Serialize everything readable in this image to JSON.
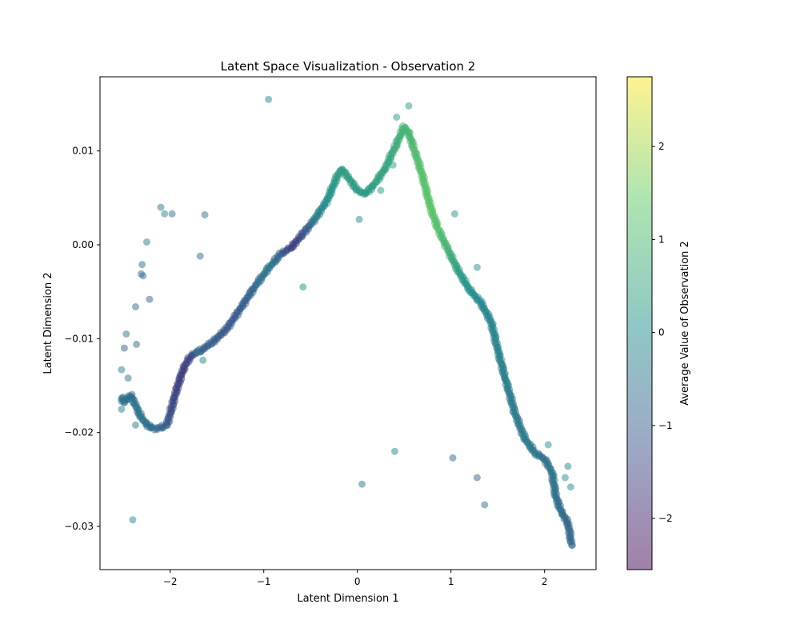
{
  "chart_data": {
    "type": "scatter",
    "title": "Latent Space Visualization - Observation 2",
    "xlabel": "Latent Dimension 1",
    "ylabel": "Latent Dimension 2",
    "xlim": [
      -2.75,
      2.55
    ],
    "ylim": [
      -0.0346,
      0.0179
    ],
    "xticks": [
      -2,
      -1,
      0,
      1,
      2
    ],
    "xtick_labels": [
      "−2",
      "−1",
      "0",
      "1",
      "2"
    ],
    "yticks": [
      0.01,
      0.0,
      -0.01,
      -0.02,
      -0.03
    ],
    "ytick_labels": [
      "0.01",
      "0.00",
      "−0.01",
      "−0.02",
      "−0.03"
    ],
    "grid": false,
    "marker_alpha": 0.5,
    "colormap": "viridis",
    "colorbar": {
      "label": "Average Value of Observation 2",
      "range": [
        -2.55,
        2.75
      ],
      "ticks": [
        2,
        1,
        0,
        -1,
        -2
      ],
      "tick_labels": [
        "2",
        "1",
        "0",
        "−1",
        "−2"
      ],
      "stops": [
        "#440154",
        "#3b528b",
        "#21918c",
        "#5ec962",
        "#fde725"
      ]
    },
    "curve": [
      {
        "x": -2.52,
        "y": -0.0162,
        "v": -0.6
      },
      {
        "x": -2.5,
        "y": -0.0168,
        "v": -0.5
      },
      {
        "x": -2.46,
        "y": -0.0165,
        "v": -0.6
      },
      {
        "x": -2.42,
        "y": -0.016,
        "v": -0.7
      },
      {
        "x": -2.38,
        "y": -0.0168,
        "v": -0.5
      },
      {
        "x": -2.33,
        "y": -0.018,
        "v": -0.5
      },
      {
        "x": -2.26,
        "y": -0.0191,
        "v": -0.6
      },
      {
        "x": -2.18,
        "y": -0.0196,
        "v": -0.7
      },
      {
        "x": -2.1,
        "y": -0.0195,
        "v": -0.8
      },
      {
        "x": -2.03,
        "y": -0.0191,
        "v": -1.0
      },
      {
        "x": -1.98,
        "y": -0.0172,
        "v": -1.4
      },
      {
        "x": -1.92,
        "y": -0.015,
        "v": -1.5
      },
      {
        "x": -1.85,
        "y": -0.013,
        "v": -1.6
      },
      {
        "x": -1.78,
        "y": -0.0118,
        "v": -1.4
      },
      {
        "x": -1.68,
        "y": -0.0113,
        "v": -1.0
      },
      {
        "x": -1.55,
        "y": -0.0104,
        "v": -0.9
      },
      {
        "x": -1.4,
        "y": -0.009,
        "v": -1.1
      },
      {
        "x": -1.25,
        "y": -0.0068,
        "v": -1.0
      },
      {
        "x": -1.1,
        "y": -0.0045,
        "v": -0.8
      },
      {
        "x": -0.95,
        "y": -0.0025,
        "v": -0.4
      },
      {
        "x": -0.82,
        "y": -0.001,
        "v": -0.9
      },
      {
        "x": -0.7,
        "y": -0.0002,
        "v": -1.6
      },
      {
        "x": -0.58,
        "y": 0.0012,
        "v": -1.3
      },
      {
        "x": -0.45,
        "y": 0.0028,
        "v": -0.4
      },
      {
        "x": -0.32,
        "y": 0.0048,
        "v": 0.1
      },
      {
        "x": -0.22,
        "y": 0.0072,
        "v": 0.3
      },
      {
        "x": -0.17,
        "y": 0.0081,
        "v": 0.4
      },
      {
        "x": -0.1,
        "y": 0.0072,
        "v": 0.4
      },
      {
        "x": 0.0,
        "y": 0.0058,
        "v": 0.3
      },
      {
        "x": 0.08,
        "y": 0.0054,
        "v": 0.3
      },
      {
        "x": 0.18,
        "y": 0.0064,
        "v": 0.4
      },
      {
        "x": 0.3,
        "y": 0.0082,
        "v": 0.5
      },
      {
        "x": 0.42,
        "y": 0.0108,
        "v": 0.7
      },
      {
        "x": 0.5,
        "y": 0.0126,
        "v": 0.9
      },
      {
        "x": 0.55,
        "y": 0.0118,
        "v": 0.9
      },
      {
        "x": 0.62,
        "y": 0.0098,
        "v": 1.1
      },
      {
        "x": 0.7,
        "y": 0.0072,
        "v": 1.2
      },
      {
        "x": 0.78,
        "y": 0.004,
        "v": 1.3
      },
      {
        "x": 0.86,
        "y": 0.0018,
        "v": 1.2
      },
      {
        "x": 0.96,
        "y": -0.0004,
        "v": 0.9
      },
      {
        "x": 1.08,
        "y": -0.0028,
        "v": 0.4
      },
      {
        "x": 1.2,
        "y": -0.0048,
        "v": 0.1
      },
      {
        "x": 1.32,
        "y": -0.0062,
        "v": -0.1
      },
      {
        "x": 1.43,
        "y": -0.0082,
        "v": -0.2
      },
      {
        "x": 1.5,
        "y": -0.0112,
        "v": -0.2
      },
      {
        "x": 1.58,
        "y": -0.0142,
        "v": -0.3
      },
      {
        "x": 1.68,
        "y": -0.0178,
        "v": -0.4
      },
      {
        "x": 1.78,
        "y": -0.0205,
        "v": -0.4
      },
      {
        "x": 1.9,
        "y": -0.0222,
        "v": -0.5
      },
      {
        "x": 2.0,
        "y": -0.0228,
        "v": -0.6
      },
      {
        "x": 2.08,
        "y": -0.0242,
        "v": -0.5
      },
      {
        "x": 2.12,
        "y": -0.0268,
        "v": -0.6
      },
      {
        "x": 2.18,
        "y": -0.0285,
        "v": -0.7
      },
      {
        "x": 2.25,
        "y": -0.0296,
        "v": -0.8
      },
      {
        "x": 2.29,
        "y": -0.032,
        "v": -0.7
      }
    ],
    "points": [
      {
        "x": -0.95,
        "y": 0.0155,
        "v": 0.0
      },
      {
        "x": 0.42,
        "y": 0.0136,
        "v": 0.2
      },
      {
        "x": 0.55,
        "y": 0.0148,
        "v": 0.3
      },
      {
        "x": 0.38,
        "y": 0.0085,
        "v": 0.4
      },
      {
        "x": 0.25,
        "y": 0.0058,
        "v": 0.3
      },
      {
        "x": 0.02,
        "y": 0.0027,
        "v": 0.0
      },
      {
        "x": 1.04,
        "y": 0.0033,
        "v": 0.2
      },
      {
        "x": 1.28,
        "y": -0.0024,
        "v": 0.1
      },
      {
        "x": -2.1,
        "y": 0.004,
        "v": -0.4
      },
      {
        "x": -2.06,
        "y": 0.0033,
        "v": -0.2
      },
      {
        "x": -1.98,
        "y": 0.0033,
        "v": -0.6
      },
      {
        "x": -1.63,
        "y": 0.0032,
        "v": -0.5
      },
      {
        "x": -2.25,
        "y": 0.0003,
        "v": -0.3
      },
      {
        "x": -1.68,
        "y": -0.0012,
        "v": -0.7
      },
      {
        "x": -2.3,
        "y": -0.0021,
        "v": -0.5
      },
      {
        "x": -2.31,
        "y": -0.0031,
        "v": -0.8
      },
      {
        "x": -2.29,
        "y": -0.0033,
        "v": -0.6
      },
      {
        "x": -2.22,
        "y": -0.0058,
        "v": -0.9
      },
      {
        "x": -2.37,
        "y": -0.0066,
        "v": -0.7
      },
      {
        "x": -0.58,
        "y": -0.0045,
        "v": 0.1
      },
      {
        "x": -2.47,
        "y": -0.0095,
        "v": -0.6
      },
      {
        "x": -2.36,
        "y": -0.0106,
        "v": -0.7
      },
      {
        "x": -2.49,
        "y": -0.011,
        "v": -1.0
      },
      {
        "x": -2.52,
        "y": -0.0133,
        "v": -0.2
      },
      {
        "x": -2.45,
        "y": -0.0142,
        "v": -0.4
      },
      {
        "x": -2.52,
        "y": -0.0175,
        "v": -0.3
      },
      {
        "x": -2.37,
        "y": -0.0192,
        "v": -0.4
      },
      {
        "x": -1.65,
        "y": -0.0123,
        "v": -0.1
      },
      {
        "x": -1.72,
        "y": -0.0114,
        "v": -0.2
      },
      {
        "x": 0.4,
        "y": -0.022,
        "v": 0.0
      },
      {
        "x": 0.05,
        "y": -0.0255,
        "v": -0.3
      },
      {
        "x": 1.02,
        "y": -0.0227,
        "v": -0.8
      },
      {
        "x": 1.28,
        "y": -0.0248,
        "v": -0.9
      },
      {
        "x": 1.36,
        "y": -0.0277,
        "v": -0.6
      },
      {
        "x": -2.4,
        "y": -0.0293,
        "v": 0.0
      },
      {
        "x": 2.04,
        "y": -0.0213,
        "v": 0.1
      },
      {
        "x": 2.25,
        "y": -0.0236,
        "v": -0.2
      },
      {
        "x": 2.28,
        "y": -0.0258,
        "v": 0.0
      },
      {
        "x": 2.22,
        "y": -0.0248,
        "v": -0.1
      }
    ]
  }
}
